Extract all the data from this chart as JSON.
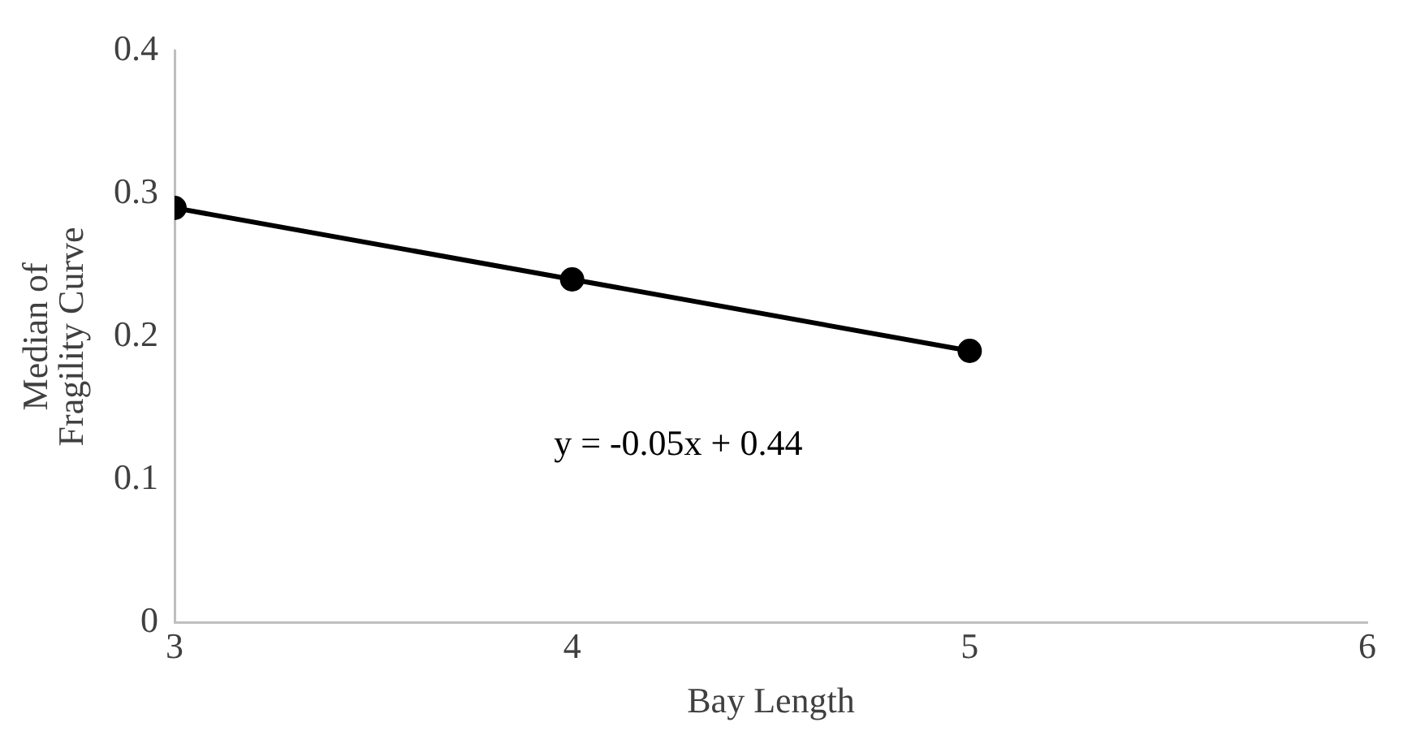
{
  "chart_data": {
    "type": "line",
    "xlabel": "Bay Length",
    "ylabel": "Median of Fragility Curve",
    "x": [
      3,
      4,
      5
    ],
    "series": [
      {
        "color": "#000000",
        "values": [
          0.29,
          0.24,
          0.19
        ]
      }
    ],
    "xlim": [
      3,
      6
    ],
    "xticks": [
      3,
      4,
      5,
      6
    ],
    "ylim": [
      0,
      0.4
    ],
    "yticks": [
      0,
      0.1,
      0.2,
      0.3,
      0.4
    ],
    "grid": false,
    "legend": false,
    "marker": "circle",
    "line_style": "solid",
    "annotations": [
      "y = -0.05x + 0.44"
    ]
  }
}
